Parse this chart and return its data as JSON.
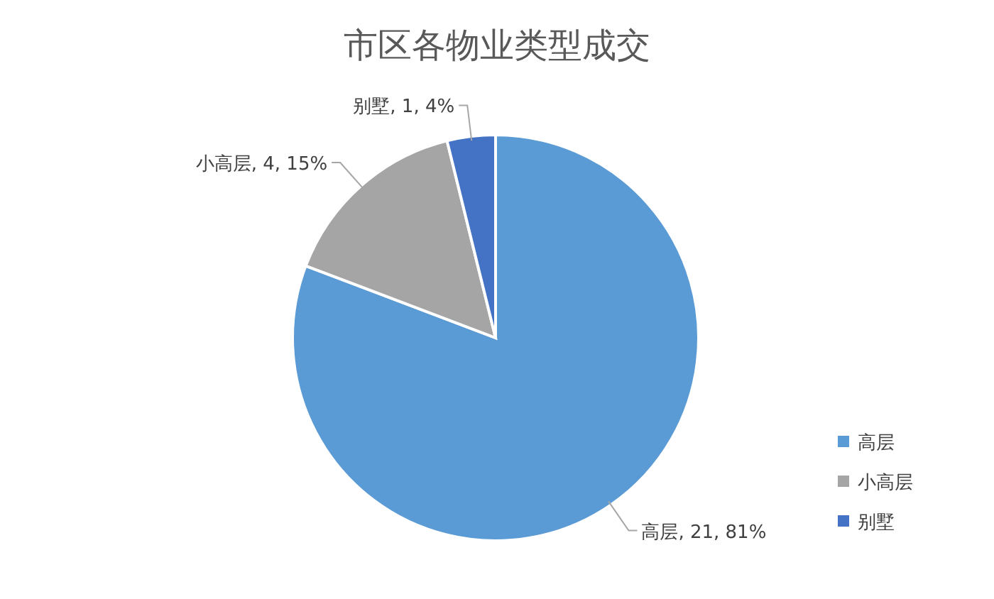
{
  "chart_data": {
    "type": "pie",
    "title": "市区各物业类型成交",
    "categories": [
      "高层",
      "小高层",
      "别墅"
    ],
    "values": [
      21,
      4,
      1
    ],
    "colors": [
      "#5b9bd5",
      "#a5a5a5",
      "#4472c4"
    ],
    "value_labels": [
      "高层, 21, 81%",
      "小高层, 4, 15%",
      "别墅, 1, 4%"
    ],
    "legend": "bottom right"
  }
}
